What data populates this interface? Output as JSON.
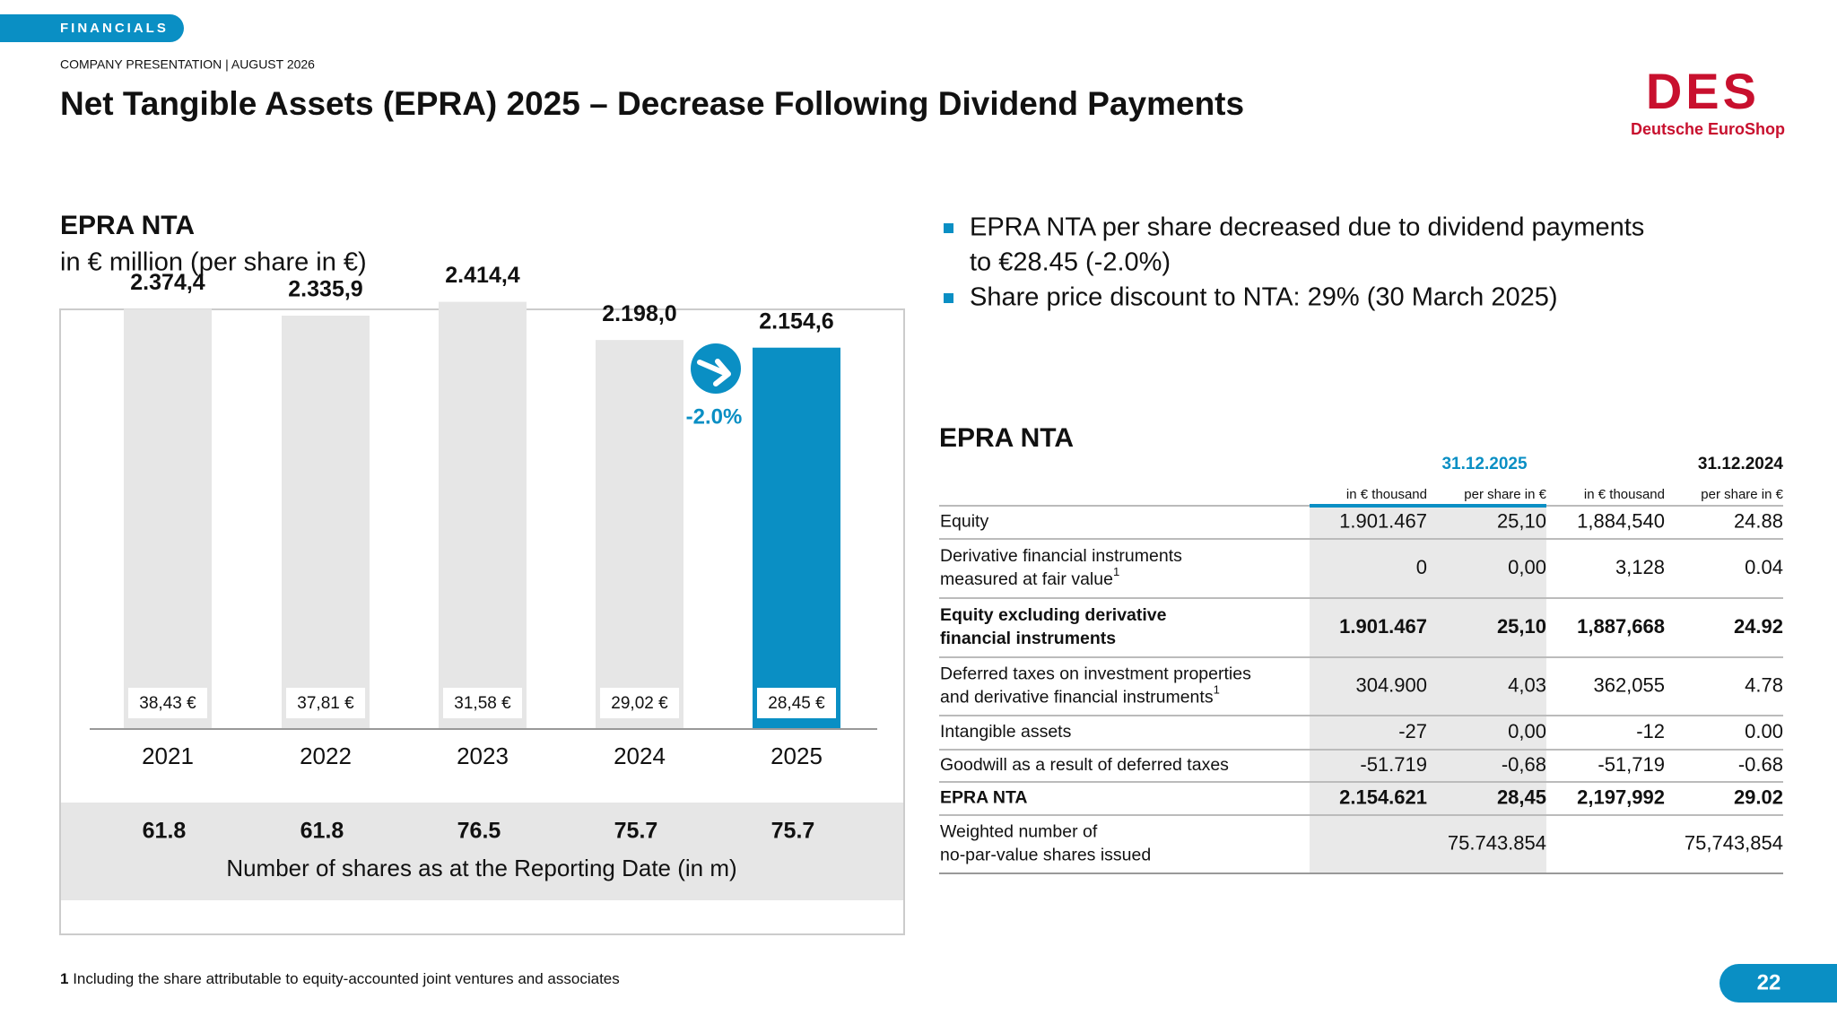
{
  "header": {
    "tag": "FINANCIALS",
    "presentation": "COMPANY PRESENTATION | AUGUST 2026",
    "title": "Net Tangible Assets (EPRA) 2025 – Decrease Following Dividend Payments",
    "logo": "DES",
    "company": "Deutsche EuroShop"
  },
  "chart_data": {
    "type": "bar",
    "title": "EPRA NTA",
    "subtitle": "in € million (per share in €)",
    "categories": [
      "2021",
      "2022",
      "2023",
      "2024",
      "2025"
    ],
    "values": [
      2374.4,
      2335.9,
      2414.4,
      2198.0,
      2154.6
    ],
    "value_labels": [
      "2.374,4",
      "2.335,9",
      "2.414,4",
      "2.198,0",
      "2.154,6"
    ],
    "colors": [
      "#e6e6e6",
      "#e6e6e6",
      "#e6e6e6",
      "#e6e6e6",
      "#0a8fc4"
    ],
    "ylim": [
      0,
      2600
    ],
    "per_share": [
      38.43,
      37.81,
      31.58,
      29.02,
      28.45
    ],
    "per_share_labels": [
      "38,43 €",
      "37,81 €",
      "31,58 €",
      "29,02 €",
      "28,45 €"
    ],
    "shares": [
      61.8,
      61.8,
      76.5,
      75.7,
      75.7
    ],
    "shares_label": "Number of shares as at the Reporting Date (in m)",
    "annotation": "-2.0%"
  },
  "bullets": [
    [
      "EPRA NTA per share decreased due to dividend payments",
      "to €28.45 (-2.0%)"
    ],
    [
      "Share price discount to NTA: 29% (30 March 2025)"
    ]
  ],
  "table": {
    "title": "EPRA NTA",
    "periods": [
      "31.12.2025",
      "31.12.2024"
    ],
    "units": [
      "in € thousand",
      "per share in €",
      "in € thousand",
      "per share in €"
    ],
    "rows": [
      {
        "label": [
          "Equity"
        ],
        "cells": [
          "1.901.467",
          "25,10",
          "1,884,540",
          "24.88"
        ]
      },
      {
        "label": [
          "Derivative financial instruments",
          "measured at fair value"
        ],
        "note": "1",
        "cells": [
          "0",
          "0,00",
          "3,128",
          "0.04"
        ]
      },
      {
        "label": [
          "Equity excluding derivative",
          "financial instruments"
        ],
        "bold": true,
        "cells": [
          "1.901.467",
          "25,10",
          "1,887,668",
          "24.92"
        ]
      },
      {
        "label": [
          "Deferred taxes on investment properties",
          "and derivative financial instruments"
        ],
        "note": "1",
        "cells": [
          "304.900",
          "4,03",
          "362,055",
          "4.78"
        ]
      },
      {
        "label": [
          "Intangible assets"
        ],
        "cells": [
          "-27",
          "0,00",
          "-12",
          "0.00"
        ]
      },
      {
        "label": [
          "Goodwill as a result of deferred taxes"
        ],
        "cells": [
          "-51.719",
          "-0,68",
          "-51,719",
          "-0.68"
        ]
      },
      {
        "label": [
          "EPRA NTA"
        ],
        "bold": true,
        "cells": [
          "2.154.621",
          "28,45",
          "2,197,992",
          "29.02"
        ]
      },
      {
        "label": [
          "Weighted number of",
          "no-par-value shares issued"
        ],
        "merged": true,
        "cells": [
          "75.743.854",
          "75,743,854"
        ]
      }
    ]
  },
  "footnote": {
    "number": "1",
    "text": "Including the share attributable to equity-accounted joint ventures and associates"
  },
  "page": "22"
}
